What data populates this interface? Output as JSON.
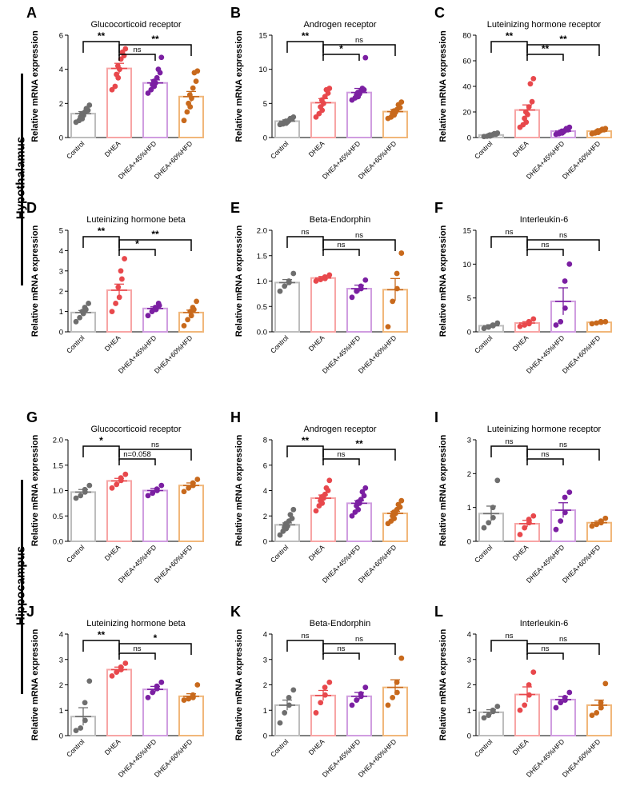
{
  "regions": [
    {
      "label": "Hypothalamus"
    },
    {
      "label": "Hippocampus"
    }
  ],
  "groups": [
    "Control",
    "DHEA",
    "DHEA+45%HFD",
    "DHEA+60%HFD"
  ],
  "group_colors": [
    "#6e6e6e",
    "#e8484c",
    "#7b1fa2",
    "#c8691c"
  ],
  "group_fills": [
    "#bdbdbd",
    "#f7a5a5",
    "#d09de0",
    "#f1b77a"
  ],
  "y_axis_label": "Relative mRNA expression",
  "chart_data": [
    {
      "type": "bar",
      "letter": "A",
      "title": "Glucocorticoid receptor",
      "ylim": [
        0,
        6
      ],
      "yticks": [
        "0",
        "2",
        "4",
        "6"
      ],
      "tick_values": [
        0,
        2,
        4,
        6
      ],
      "means": [
        1.4,
        4.05,
        3.2,
        2.4
      ],
      "errors": [
        0.12,
        0.3,
        0.18,
        0.3
      ],
      "points": [
        [
          0.9,
          1.0,
          1.1,
          1.2,
          1.3,
          1.4,
          1.5,
          1.6,
          1.7,
          1.9
        ],
        [
          2.8,
          3.0,
          3.5,
          3.7,
          4.0,
          4.2,
          4.6,
          4.8,
          5.0,
          5.2
        ],
        [
          2.6,
          2.8,
          3.0,
          3.1,
          3.2,
          3.3,
          3.5,
          3.8,
          4.0,
          4.7
        ],
        [
          1.0,
          1.5,
          1.8,
          2.0,
          2.3,
          2.5,
          2.9,
          3.3,
          3.8,
          3.9
        ]
      ],
      "comparisons": [
        {
          "pair": [
            0,
            1
          ],
          "label": "**"
        },
        {
          "pair": [
            1,
            2
          ],
          "label": "ns"
        },
        {
          "pair": [
            1,
            3
          ],
          "label": "**"
        }
      ]
    },
    {
      "type": "bar",
      "letter": "B",
      "title": "Androgen receptor",
      "ylim": [
        0,
        15
      ],
      "yticks": [
        "0",
        "5",
        "10",
        "15"
      ],
      "tick_values": [
        0,
        5,
        10,
        15
      ],
      "means": [
        2.4,
        5.1,
        6.6,
        3.8
      ],
      "errors": [
        0.2,
        0.6,
        0.6,
        0.3
      ],
      "points": [
        [
          1.9,
          2.0,
          2.1,
          2.2,
          2.3,
          2.4,
          2.5,
          2.7,
          2.8,
          3.0
        ],
        [
          3.0,
          3.5,
          4.0,
          4.5,
          5.0,
          5.5,
          6.0,
          6.5,
          7.0,
          7.2
        ],
        [
          5.5,
          5.8,
          6.0,
          6.2,
          6.4,
          6.6,
          6.8,
          7.0,
          7.2,
          11.7
        ],
        [
          2.8,
          3.0,
          3.3,
          3.5,
          3.7,
          3.9,
          4.1,
          4.4,
          4.8,
          5.2
        ]
      ],
      "comparisons": [
        {
          "pair": [
            0,
            1
          ],
          "label": "**"
        },
        {
          "pair": [
            1,
            2
          ],
          "label": "*"
        },
        {
          "pair": [
            1,
            3
          ],
          "label": "ns"
        }
      ]
    },
    {
      "type": "bar",
      "letter": "C",
      "title": "Luteinizing hormone receptor",
      "ylim": [
        0,
        80
      ],
      "yticks": [
        "0",
        "20",
        "40",
        "60",
        "80"
      ],
      "tick_values": [
        0,
        20,
        40,
        60,
        80
      ],
      "means": [
        2.0,
        21.5,
        5.0,
        5.0
      ],
      "errors": [
        0.5,
        4.0,
        0.8,
        0.6
      ],
      "points": [
        [
          0.8,
          1.0,
          1.2,
          1.5,
          1.8,
          2.0,
          2.3,
          2.6,
          3.0,
          3.5
        ],
        [
          8,
          10,
          12,
          15,
          18,
          20,
          24,
          28,
          42,
          46
        ],
        [
          2.5,
          3.0,
          3.5,
          4.0,
          4.5,
          5.0,
          5.5,
          6.0,
          7.0,
          8.0
        ],
        [
          3.0,
          3.5,
          4.0,
          4.5,
          5.0,
          5.3,
          5.6,
          6.0,
          6.5,
          7.0
        ]
      ],
      "comparisons": [
        {
          "pair": [
            0,
            1
          ],
          "label": "**"
        },
        {
          "pair": [
            1,
            2
          ],
          "label": "**"
        },
        {
          "pair": [
            1,
            3
          ],
          "label": "**"
        }
      ]
    },
    {
      "type": "bar",
      "letter": "D",
      "title": "Luteinizing hormone beta",
      "ylim": [
        0,
        5
      ],
      "yticks": [
        "0",
        "1",
        "2",
        "3",
        "4",
        "5"
      ],
      "tick_values": [
        0,
        1,
        2,
        3,
        4,
        5
      ],
      "means": [
        0.95,
        2.05,
        1.15,
        0.95
      ],
      "errors": [
        0.1,
        0.3,
        0.08,
        0.12
      ],
      "points": [
        [
          0.5,
          0.7,
          0.9,
          1.0,
          1.1,
          1.2,
          1.4
        ],
        [
          1.0,
          1.4,
          1.7,
          2.2,
          2.6,
          3.0,
          3.6
        ],
        [
          0.8,
          1.0,
          1.1,
          1.2,
          1.3,
          1.4
        ],
        [
          0.3,
          0.6,
          0.8,
          1.0,
          1.1,
          1.2,
          1.5
        ]
      ],
      "comparisons": [
        {
          "pair": [
            0,
            1
          ],
          "label": "**"
        },
        {
          "pair": [
            1,
            2
          ],
          "label": "*"
        },
        {
          "pair": [
            1,
            3
          ],
          "label": "**"
        }
      ]
    },
    {
      "type": "bar",
      "letter": "E",
      "title": "Beta-Endorphin",
      "ylim": [
        0,
        2
      ],
      "yticks": [
        "0.0",
        "0.5",
        "1.0",
        "1.5",
        "2.0"
      ],
      "tick_values": [
        0,
        0.5,
        1.0,
        1.5,
        2.0
      ],
      "means": [
        0.97,
        1.06,
        0.85,
        0.83
      ],
      "errors": [
        0.06,
        0.03,
        0.07,
        0.22
      ],
      "points": [
        [
          0.8,
          0.9,
          0.97,
          1.0,
          1.15
        ],
        [
          1.0,
          1.03,
          1.05,
          1.08,
          1.12
        ],
        [
          0.68,
          0.8,
          0.85,
          0.9,
          1.02
        ],
        [
          0.1,
          0.6,
          0.85,
          1.15,
          1.55
        ]
      ],
      "comparisons": [
        {
          "pair": [
            0,
            1
          ],
          "label": "ns"
        },
        {
          "pair": [
            1,
            2
          ],
          "label": "ns"
        },
        {
          "pair": [
            1,
            3
          ],
          "label": "ns"
        }
      ]
    },
    {
      "type": "bar",
      "letter": "F",
      "title": "Interleukin-6",
      "ylim": [
        0,
        15
      ],
      "yticks": [
        "0",
        "5",
        "10",
        "15"
      ],
      "tick_values": [
        0,
        5,
        10,
        15
      ],
      "means": [
        0.9,
        1.3,
        4.5,
        1.4
      ],
      "errors": [
        0.15,
        0.2,
        2.0,
        0.1
      ],
      "points": [
        [
          0.5,
          0.7,
          0.9,
          1.0,
          1.3
        ],
        [
          0.8,
          1.0,
          1.2,
          1.5,
          1.9
        ],
        [
          1.0,
          1.5,
          3.5,
          7.5,
          10.0
        ],
        [
          1.2,
          1.3,
          1.4,
          1.5,
          1.5
        ]
      ],
      "comparisons": [
        {
          "pair": [
            0,
            1
          ],
          "label": "ns"
        },
        {
          "pair": [
            1,
            2
          ],
          "label": "ns"
        },
        {
          "pair": [
            1,
            3
          ],
          "label": "ns"
        }
      ]
    },
    {
      "type": "bar",
      "letter": "G",
      "title": "Glucocorticoid receptor",
      "ylim": [
        0,
        2
      ],
      "yticks": [
        "0.0",
        "0.5",
        "1.0",
        "1.5",
        "2.0"
      ],
      "tick_values": [
        0,
        0.5,
        1.0,
        1.5,
        2.0
      ],
      "means": [
        0.97,
        1.19,
        1.0,
        1.1
      ],
      "errors": [
        0.05,
        0.05,
        0.04,
        0.05
      ],
      "points": [
        [
          0.85,
          0.9,
          0.97,
          1.02,
          1.1
        ],
        [
          1.05,
          1.12,
          1.2,
          1.25,
          1.32
        ],
        [
          0.9,
          0.95,
          1.0,
          1.03,
          1.1
        ],
        [
          0.98,
          1.05,
          1.1,
          1.15,
          1.22
        ]
      ],
      "comparisons": [
        {
          "pair": [
            0,
            1
          ],
          "label": "*"
        },
        {
          "pair": [
            1,
            2
          ],
          "label": "n=0.058"
        },
        {
          "pair": [
            1,
            3
          ],
          "label": "ns"
        }
      ]
    },
    {
      "type": "bar",
      "letter": "H",
      "title": "Androgen receptor",
      "ylim": [
        0,
        8
      ],
      "yticks": [
        "0",
        "2",
        "4",
        "6",
        "8"
      ],
      "tick_values": [
        0,
        2,
        4,
        6,
        8
      ],
      "means": [
        1.3,
        3.4,
        3.0,
        2.2
      ],
      "errors": [
        0.15,
        0.25,
        0.2,
        0.15
      ],
      "points": [
        [
          0.5,
          0.8,
          1.0,
          1.1,
          1.2,
          1.4,
          1.6,
          1.8,
          2.1,
          2.5
        ],
        [
          2.4,
          2.8,
          3.0,
          3.2,
          3.4,
          3.5,
          3.7,
          4.0,
          4.2,
          4.8
        ],
        [
          2.0,
          2.3,
          2.5,
          2.8,
          3.0,
          3.1,
          3.3,
          3.6,
          3.9,
          4.2
        ],
        [
          1.4,
          1.6,
          1.8,
          2.0,
          2.2,
          2.3,
          2.5,
          2.7,
          2.9,
          3.2
        ]
      ],
      "comparisons": [
        {
          "pair": [
            0,
            1
          ],
          "label": "**"
        },
        {
          "pair": [
            1,
            2
          ],
          "label": "ns"
        },
        {
          "pair": [
            1,
            3
          ],
          "label": "**"
        }
      ]
    },
    {
      "type": "bar",
      "letter": "I",
      "title": "Luteinizing hormone receptor",
      "ylim": [
        0,
        3
      ],
      "yticks": [
        "0",
        "1",
        "2",
        "3"
      ],
      "tick_values": [
        0,
        1,
        2,
        3
      ],
      "means": [
        0.82,
        0.52,
        0.92,
        0.55
      ],
      "errors": [
        0.22,
        0.1,
        0.22,
        0.05
      ],
      "points": [
        [
          0.4,
          0.55,
          0.7,
          1.0,
          1.8
        ],
        [
          0.2,
          0.4,
          0.55,
          0.65,
          0.75
        ],
        [
          0.35,
          0.6,
          0.85,
          1.3,
          1.45
        ],
        [
          0.45,
          0.5,
          0.55,
          0.6,
          0.68
        ]
      ],
      "comparisons": [
        {
          "pair": [
            0,
            1
          ],
          "label": "ns"
        },
        {
          "pair": [
            1,
            2
          ],
          "label": "ns"
        },
        {
          "pair": [
            1,
            3
          ],
          "label": "ns"
        }
      ]
    },
    {
      "type": "bar",
      "letter": "J",
      "title": "Luteinizing hormone beta",
      "ylim": [
        0,
        4
      ],
      "yticks": [
        "0",
        "1",
        "2",
        "3",
        "4"
      ],
      "tick_values": [
        0,
        1,
        2,
        3,
        4
      ],
      "means": [
        0.75,
        2.6,
        1.82,
        1.55
      ],
      "errors": [
        0.35,
        0.1,
        0.12,
        0.1
      ],
      "points": [
        [
          0.2,
          0.3,
          0.6,
          1.3,
          2.15
        ],
        [
          2.35,
          2.5,
          2.6,
          2.7,
          2.85
        ],
        [
          1.5,
          1.7,
          1.85,
          1.95,
          2.1
        ],
        [
          1.4,
          1.45,
          1.5,
          1.6,
          2.0
        ]
      ],
      "comparisons": [
        {
          "pair": [
            0,
            1
          ],
          "label": "**"
        },
        {
          "pair": [
            1,
            2
          ],
          "label": "ns"
        },
        {
          "pair": [
            1,
            3
          ],
          "label": "*"
        }
      ]
    },
    {
      "type": "bar",
      "letter": "K",
      "title": "Beta-Endorphin",
      "ylim": [
        0,
        4
      ],
      "yticks": [
        "0",
        "1",
        "2",
        "3",
        "4"
      ],
      "tick_values": [
        0,
        1,
        2,
        3,
        4
      ],
      "means": [
        1.2,
        1.58,
        1.55,
        1.9
      ],
      "errors": [
        0.2,
        0.2,
        0.15,
        0.3
      ],
      "points": [
        [
          0.5,
          0.9,
          1.2,
          1.5,
          1.8
        ],
        [
          0.9,
          1.3,
          1.6,
          1.9,
          2.1
        ],
        [
          1.2,
          1.4,
          1.55,
          1.65,
          1.9
        ],
        [
          1.2,
          1.5,
          1.7,
          2.1,
          3.05
        ]
      ],
      "comparisons": [
        {
          "pair": [
            0,
            1
          ],
          "label": "ns"
        },
        {
          "pair": [
            1,
            2
          ],
          "label": "ns"
        },
        {
          "pair": [
            1,
            3
          ],
          "label": "ns"
        }
      ]
    },
    {
      "type": "bar",
      "letter": "L",
      "title": "Interleukin-6",
      "ylim": [
        0,
        4
      ],
      "yticks": [
        "0",
        "1",
        "2",
        "3",
        "4"
      ],
      "tick_values": [
        0,
        1,
        2,
        3,
        4
      ],
      "means": [
        0.92,
        1.62,
        1.42,
        1.2
      ],
      "errors": [
        0.1,
        0.3,
        0.12,
        0.2
      ],
      "points": [
        [
          0.7,
          0.8,
          0.95,
          1.0,
          1.15
        ],
        [
          1.0,
          1.2,
          1.6,
          2.0,
          2.5
        ],
        [
          1.1,
          1.3,
          1.4,
          1.5,
          1.7
        ],
        [
          0.8,
          0.9,
          1.1,
          1.3,
          2.05
        ]
      ],
      "comparisons": [
        {
          "pair": [
            0,
            1
          ],
          "label": "ns"
        },
        {
          "pair": [
            1,
            2
          ],
          "label": "ns"
        },
        {
          "pair": [
            1,
            3
          ],
          "label": "ns"
        }
      ]
    }
  ]
}
